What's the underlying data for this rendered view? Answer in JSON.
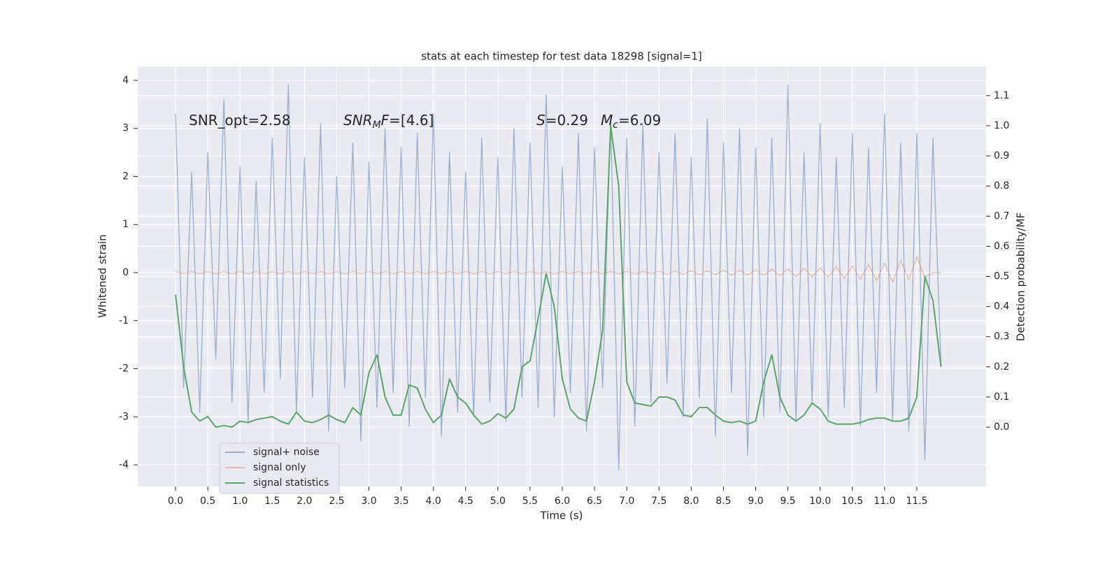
{
  "chart_data": {
    "type": "line",
    "title": "stats at each timestep for test data 18298 [signal=1]",
    "xlabel": "Time (s)",
    "ylabel": "Whitened strain",
    "y2label": "Detection probability/MF",
    "background": "#eaeaf2",
    "grid": true,
    "legend_loc": "lower left",
    "annotations": [
      [
        {
          "text": "SNR_opt=2.58"
        }
      ],
      [
        {
          "text": "SNR",
          "italic": true
        },
        {
          "text": "M",
          "italic": true,
          "sub": true
        },
        {
          "text": "F",
          "italic": true
        },
        {
          "text": "=[4.6]"
        }
      ],
      [
        {
          "text": "S",
          "italic": true
        },
        {
          "text": "=0.29"
        }
      ],
      [
        {
          "text": "M",
          "italic": true
        },
        {
          "text": "c",
          "italic": true,
          "sub": true
        },
        {
          "text": "=6.09"
        }
      ]
    ],
    "xlim": [
      -0.586,
      12.575
    ],
    "ylim": [
      -4.45,
      4.29
    ],
    "y2lim": [
      -0.197,
      1.197
    ],
    "xticks": [
      {
        "value": 0,
        "label": "0.0"
      },
      0.5,
      {
        "value": 1,
        "label": "1.0"
      },
      1.5,
      {
        "value": 2,
        "label": "2.0"
      },
      2.5,
      {
        "value": 3,
        "label": "3.0"
      },
      3.5,
      {
        "value": 4,
        "label": "4.0"
      },
      4.5,
      {
        "value": 5,
        "label": "5.0"
      },
      5.5,
      {
        "value": 6,
        "label": "6.0"
      },
      6.5,
      {
        "value": 7,
        "label": "7.0"
      },
      7.5,
      {
        "value": 8,
        "label": "8.0"
      },
      8.5,
      {
        "value": 9,
        "label": "9.0"
      },
      9.5,
      {
        "value": 10,
        "label": "10.0"
      },
      10.5,
      {
        "value": 11,
        "label": "11.0"
      },
      11.5
    ],
    "yticks": [
      -4,
      -3,
      -2,
      -1,
      0,
      1,
      2,
      3,
      4
    ],
    "y2ticks": [
      {
        "value": 0,
        "label": "0.0"
      },
      0.1,
      0.2,
      0.3,
      0.4,
      0.5,
      0.6,
      0.7,
      0.8,
      0.9,
      {
        "value": 1,
        "label": "1.0"
      },
      1.1
    ],
    "x": [
      0,
      0.125,
      0.25,
      0.375,
      0.5,
      0.625,
      0.75,
      0.875,
      1,
      1.125,
      1.25,
      1.375,
      1.5,
      1.625,
      1.75,
      1.875,
      2,
      2.125,
      2.25,
      2.375,
      2.5,
      2.625,
      2.75,
      2.875,
      3,
      3.125,
      3.25,
      3.375,
      3.5,
      3.625,
      3.75,
      3.875,
      4,
      4.125,
      4.25,
      4.375,
      4.5,
      4.625,
      4.75,
      4.875,
      5,
      5.125,
      5.25,
      5.375,
      5.5,
      5.625,
      5.75,
      5.875,
      6,
      6.125,
      6.25,
      6.375,
      6.5,
      6.625,
      6.75,
      6.875,
      7,
      7.125,
      7.25,
      7.375,
      7.5,
      7.625,
      7.75,
      7.875,
      8,
      8.125,
      8.25,
      8.375,
      8.5,
      8.625,
      8.75,
      8.875,
      9,
      9.125,
      9.25,
      9.375,
      9.5,
      9.625,
      9.75,
      9.875,
      10,
      10.125,
      10.25,
      10.375,
      10.5,
      10.625,
      10.75,
      10.875,
      11,
      11.125,
      11.25,
      11.375,
      11.5,
      11.625,
      11.75,
      11.875
    ],
    "series": [
      {
        "name": "signal+ noise",
        "color": "#4c72b0",
        "alpha": 0.5,
        "axis": "y",
        "values": [
          3.3,
          -2.4,
          2.1,
          -2.9,
          2.5,
          -1.8,
          3.6,
          -2.7,
          2.2,
          -3.1,
          1.9,
          -2.5,
          2.8,
          -2.2,
          3.9,
          -2.9,
          2.4,
          -2.6,
          3.1,
          -3.3,
          2.0,
          -2.4,
          2.7,
          -3.5,
          2.3,
          -2.8,
          3.0,
          -2.5,
          2.6,
          -3.2,
          2.9,
          -2.6,
          3.3,
          -3.4,
          2.5,
          -2.9,
          2.1,
          -3.0,
          2.8,
          -2.7,
          2.4,
          -3.1,
          3.0,
          -2.6,
          2.7,
          -2.8,
          3.7,
          -3.0,
          2.2,
          -2.5,
          2.9,
          -3.3,
          2.6,
          -2.4,
          3.2,
          -4.1,
          2.8,
          -3.2,
          3.1,
          -2.7,
          2.5,
          -2.3,
          2.9,
          -3.0,
          2.4,
          -2.6,
          3.2,
          -3.4,
          2.7,
          -2.5,
          3.0,
          -3.8,
          2.6,
          -3.0,
          2.8,
          -2.9,
          3.9,
          -3.1,
          2.5,
          -2.7,
          3.1,
          -3.0,
          2.4,
          -2.8,
          2.9,
          -3.2,
          2.6,
          -2.5,
          3.3,
          -3.1,
          2.7,
          -3.3,
          2.9,
          -3.9,
          2.8,
          -1.9
        ]
      },
      {
        "name": "signal only",
        "color": "#dd8452",
        "alpha": 0.5,
        "axis": "y",
        "values": [
          0.02,
          -0.02,
          0.02,
          -0.02,
          0.02,
          -0.02,
          0.02,
          -0.02,
          0.02,
          -0.02,
          0.02,
          -0.02,
          0.02,
          -0.02,
          0.02,
          -0.02,
          0.02,
          -0.02,
          0.02,
          -0.02,
          0.02,
          -0.02,
          0.02,
          -0.02,
          0.02,
          -0.02,
          0.02,
          -0.02,
          0.02,
          -0.02,
          0.02,
          -0.02,
          0.02,
          -0.02,
          0.02,
          -0.02,
          0.02,
          -0.02,
          0.02,
          -0.02,
          0.02,
          -0.02,
          0.02,
          -0.02,
          0.02,
          -0.02,
          0.02,
          -0.02,
          0.02,
          -0.02,
          0.02,
          -0.02,
          0.02,
          -0.02,
          0.02,
          -0.02,
          0.02,
          -0.02,
          0.02,
          -0.02,
          0.03,
          -0.03,
          0.03,
          -0.03,
          0.04,
          -0.04,
          0.04,
          -0.04,
          0.05,
          -0.05,
          0.05,
          -0.05,
          0.06,
          -0.06,
          0.07,
          -0.07,
          0.08,
          -0.08,
          0.09,
          -0.09,
          0.1,
          -0.1,
          0.12,
          -0.12,
          0.14,
          -0.14,
          0.17,
          -0.17,
          0.2,
          -0.2,
          0.26,
          -0.15,
          0.33,
          -0.1,
          0,
          0
        ]
      },
      {
        "name": "signal statistics",
        "color": "#55a868",
        "alpha": 1,
        "axis": "y2",
        "values": [
          0.44,
          0.2,
          0.05,
          0.02,
          0.035,
          0.0,
          0.005,
          0.0,
          0.02,
          0.015,
          0.025,
          0.03,
          0.035,
          0.02,
          0.01,
          0.05,
          0.02,
          0.015,
          0.025,
          0.04,
          0.025,
          0.015,
          0.065,
          0.04,
          0.18,
          0.24,
          0.1,
          0.04,
          0.04,
          0.14,
          0.13,
          0.06,
          0.015,
          0.04,
          0.16,
          0.1,
          0.08,
          0.04,
          0.01,
          0.02,
          0.045,
          0.03,
          0.06,
          0.2,
          0.22,
          0.36,
          0.51,
          0.4,
          0.16,
          0.06,
          0.03,
          0.02,
          0.15,
          0.32,
          1.0,
          0.8,
          0.15,
          0.08,
          0.075,
          0.07,
          0.1,
          0.1,
          0.09,
          0.04,
          0.035,
          0.065,
          0.065,
          0.04,
          0.02,
          0.015,
          0.02,
          0.01,
          0.02,
          0.15,
          0.24,
          0.1,
          0.04,
          0.02,
          0.04,
          0.08,
          0.06,
          0.02,
          0.01,
          0.01,
          0.01,
          0.015,
          0.025,
          0.03,
          0.03,
          0.02,
          0.02,
          0.03,
          0.1,
          0.5,
          0.42,
          0.2
        ]
      }
    ]
  }
}
